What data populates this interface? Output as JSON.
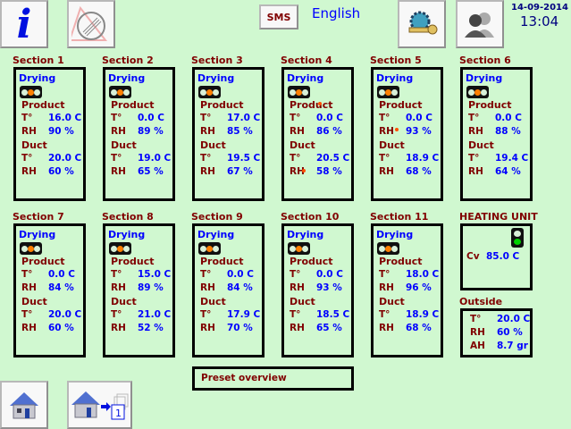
{
  "header": {
    "sms_label": "SMS",
    "language": "English",
    "date": "14-09-2014",
    "time": "13:04"
  },
  "colors": {
    "background": "#d0f8d0",
    "label": "#800000",
    "value": "#0000ff",
    "signal_active": "#ff7f00",
    "heating_active": "#00d000"
  },
  "labels": {
    "mode": "Drying",
    "product": "Product",
    "duct": "Duct",
    "temp": "T°",
    "rh": "RH"
  },
  "sections": [
    {
      "title": "Section 1",
      "product_t": "16.0 C",
      "product_rh": "90 %",
      "duct_t": "20.0 C",
      "duct_rh": "60 %"
    },
    {
      "title": "Section 2",
      "product_t": "0.0 C",
      "product_rh": "89 %",
      "duct_t": "19.0 C",
      "duct_rh": "65 %"
    },
    {
      "title": "Section 3",
      "product_t": "17.0 C",
      "product_rh": "85 %",
      "duct_t": "19.5 C",
      "duct_rh": "67 %"
    },
    {
      "title": "Section 4",
      "product_t": "0.0 C",
      "product_rh": "86 %",
      "duct_t": "20.5 C",
      "duct_rh": "58 %"
    },
    {
      "title": "Section 5",
      "product_t": "0.0 C",
      "product_rh": "93 %",
      "duct_t": "18.9 C",
      "duct_rh": "68 %"
    },
    {
      "title": "Section 6",
      "product_t": "0.0 C",
      "product_rh": "88 %",
      "duct_t": "19.4 C",
      "duct_rh": "64 %"
    },
    {
      "title": "Section 7",
      "product_t": "0.0 C",
      "product_rh": "84 %",
      "duct_t": "20.0 C",
      "duct_rh": "60 %"
    },
    {
      "title": "Section 8",
      "product_t": "15.0 C",
      "product_rh": "89 %",
      "duct_t": "21.0 C",
      "duct_rh": "52 %"
    },
    {
      "title": "Section 9",
      "product_t": "0.0 C",
      "product_rh": "84 %",
      "duct_t": "17.9 C",
      "duct_rh": "70 %"
    },
    {
      "title": "Section 10",
      "product_t": "0.0 C",
      "product_rh": "93 %",
      "duct_t": "18.5 C",
      "duct_rh": "65 %"
    },
    {
      "title": "Section 11",
      "product_t": "18.0 C",
      "product_rh": "96 %",
      "duct_t": "18.9 C",
      "duct_rh": "68 %"
    }
  ],
  "heating": {
    "title": "HEATING UNIT",
    "cv_label": "Cv",
    "cv_value": "85.0 C"
  },
  "outside": {
    "title": "Outside",
    "t_label": "T°",
    "t_value": "20.0 C",
    "rh_label": "RH",
    "rh_value": "60 %",
    "ah_label": "AH",
    "ah_value": "8.7 gr"
  },
  "preset": {
    "label": "Preset overview"
  },
  "icons": {
    "info": "info-icon",
    "alarm": "alarm-off-icon",
    "settings": "gear-wrench-icon",
    "users": "users-icon",
    "home": "home-icon",
    "home_section": "home-section-icon"
  },
  "home_section_number": "1"
}
